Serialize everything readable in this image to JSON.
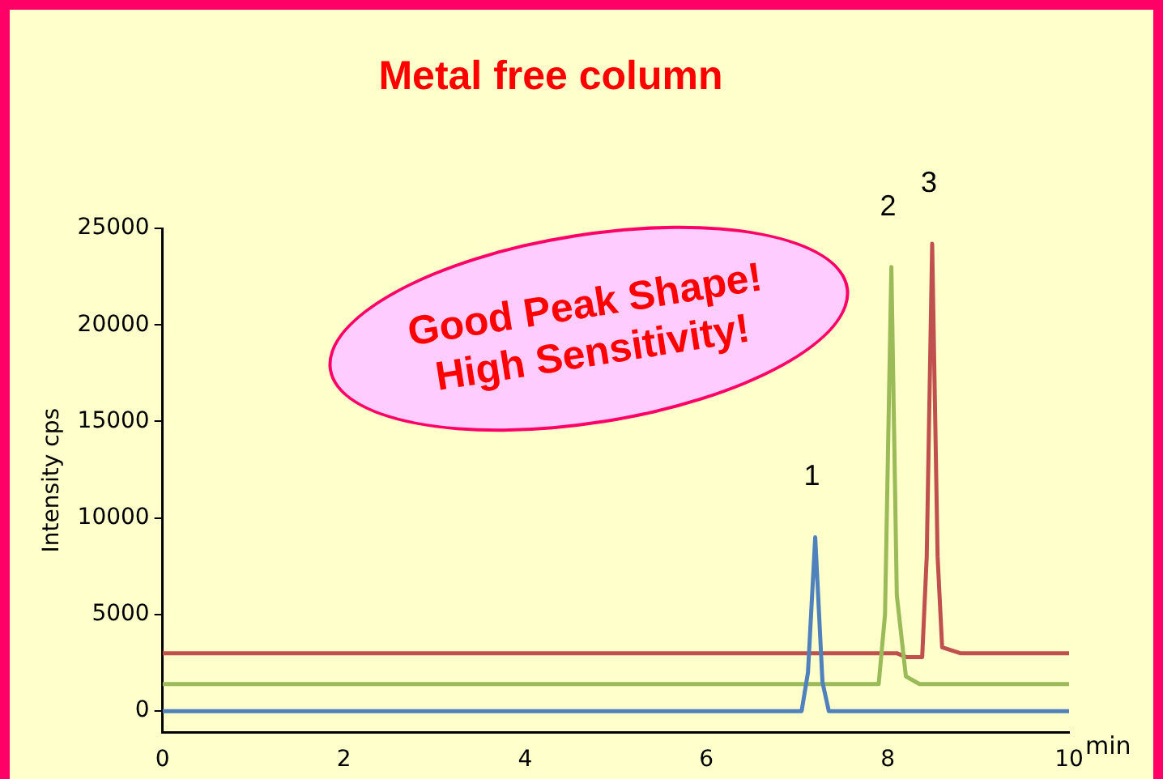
{
  "chart_data": {
    "type": "line",
    "title": "Metal free column",
    "ylabel": "Intensity cps",
    "xlabel": "min",
    "xlim": [
      0,
      10
    ],
    "xticks": [
      0,
      2,
      4,
      6,
      8,
      10
    ],
    "ylim": [
      -1100,
      25000
    ],
    "yticks": [
      0,
      5000,
      10000,
      15000,
      20000,
      25000
    ],
    "grid": false,
    "legend": false,
    "marker": "none",
    "line_style": "solid",
    "series": [
      {
        "color": "#4f81bd",
        "x": [
          0,
          7.05,
          7.12,
          7.2,
          7.28,
          7.35,
          10
        ],
        "values": [
          0,
          0,
          2000,
          9000,
          1500,
          0,
          0
        ]
      },
      {
        "color": "#9bbb59",
        "x": [
          0,
          7.9,
          7.97,
          8.04,
          8.1,
          8.2,
          8.35,
          10
        ],
        "values": [
          1400,
          1400,
          5000,
          23000,
          6000,
          1800,
          1400,
          1400
        ]
      },
      {
        "color": "#c0504d",
        "x": [
          0,
          8.1,
          8.2,
          8.38,
          8.43,
          8.49,
          8.55,
          8.6,
          8.8,
          10
        ],
        "values": [
          3000,
          3000,
          2800,
          2800,
          8000,
          24200,
          8000,
          3300,
          3000,
          3000
        ]
      }
    ],
    "annotations": [
      {
        "text": "1",
        "x": 7.2,
        "y": 9000
      },
      {
        "text": "2",
        "x": 8.04,
        "y": 23000
      },
      {
        "text": "3",
        "x": 8.49,
        "y": 24200
      },
      "Good Peak Shape!\nHigh Sensitivity!"
    ]
  }
}
